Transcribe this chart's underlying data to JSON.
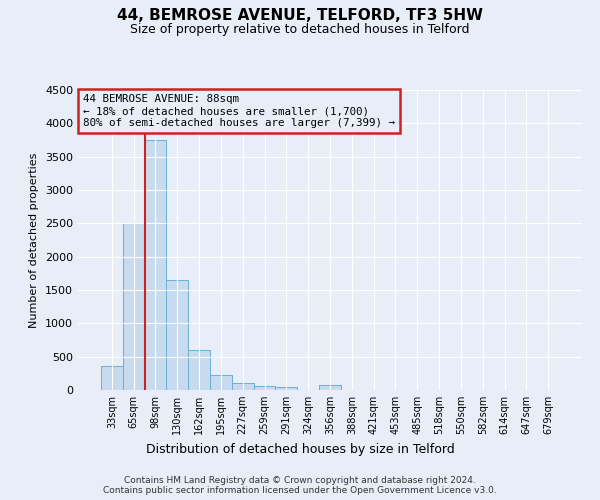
{
  "title": "44, BEMROSE AVENUE, TELFORD, TF3 5HW",
  "subtitle": "Size of property relative to detached houses in Telford",
  "xlabel": "Distribution of detached houses by size in Telford",
  "ylabel": "Number of detached properties",
  "footer_line1": "Contains HM Land Registry data © Crown copyright and database right 2024.",
  "footer_line2": "Contains public sector information licensed under the Open Government Licence v3.0.",
  "categories": [
    "33sqm",
    "65sqm",
    "98sqm",
    "130sqm",
    "162sqm",
    "195sqm",
    "227sqm",
    "259sqm",
    "291sqm",
    "324sqm",
    "356sqm",
    "388sqm",
    "421sqm",
    "453sqm",
    "485sqm",
    "518sqm",
    "550sqm",
    "582sqm",
    "614sqm",
    "647sqm",
    "679sqm"
  ],
  "values": [
    355,
    2500,
    3750,
    1650,
    600,
    225,
    100,
    60,
    40,
    0,
    70,
    0,
    0,
    0,
    0,
    0,
    0,
    0,
    0,
    0,
    0
  ],
  "bar_color": "#c8daee",
  "bar_edge_color": "#6aaed6",
  "ylim": [
    0,
    4500
  ],
  "yticks": [
    0,
    500,
    1000,
    1500,
    2000,
    2500,
    3000,
    3500,
    4000,
    4500
  ],
  "vline_x": 1.53,
  "vline_color": "#cc2222",
  "annotation_text": "44 BEMROSE AVENUE: 88sqm\n← 18% of detached houses are smaller (1,700)\n80% of semi-detached houses are larger (7,399) →",
  "annotation_box_color": "#cc2222",
  "background_color": "#e8eef8",
  "grid_color": "#ffffff",
  "property_size": 88
}
